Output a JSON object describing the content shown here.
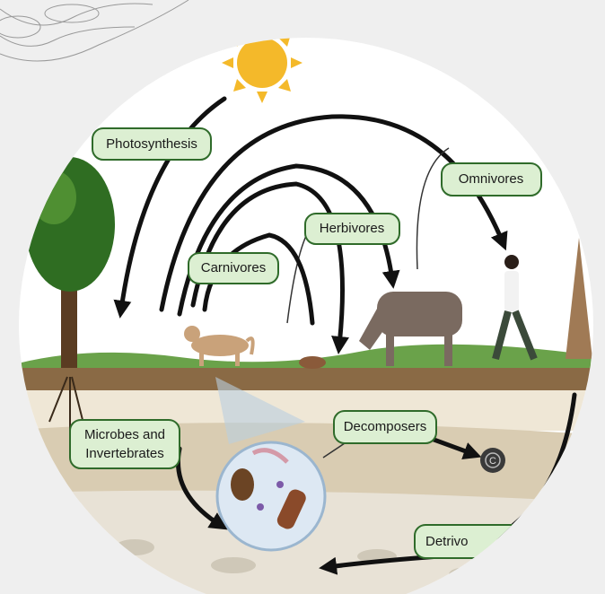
{
  "labels": {
    "photosynthesis": "Photosynthesis",
    "omnivores": "Omnivores",
    "herbivores": "Herbivores",
    "carnivores": "Carnivores",
    "microbes": [
      "Microbes and",
      "Invertebrates"
    ],
    "decomposers": "Decomposers",
    "carbon": "C",
    "detrivores": "Detrivo"
  }
}
